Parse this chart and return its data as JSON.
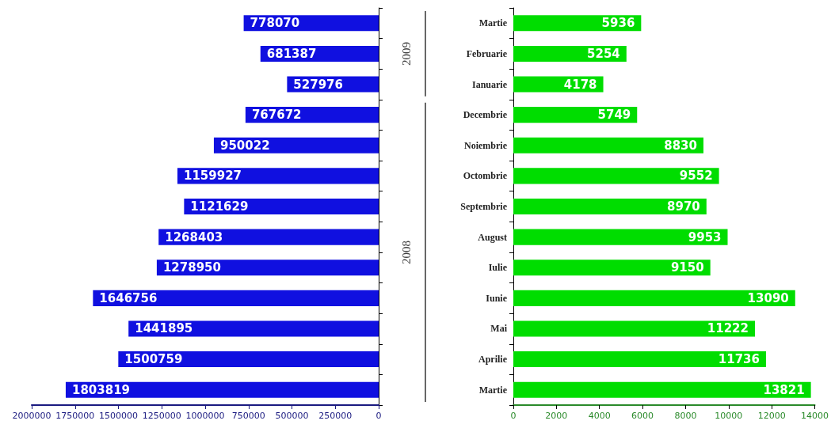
{
  "chart_data": [
    {
      "type": "bar",
      "orientation": "horizontal",
      "categories": [
        null,
        null,
        null,
        null,
        null,
        null,
        null,
        null,
        null,
        null,
        null,
        null,
        null
      ],
      "values": [
        778070,
        681387,
        527976,
        767672,
        950022,
        1159927,
        1121629,
        1268403,
        1278950,
        1646756,
        1441895,
        1500759,
        1803819
      ],
      "color": "#1010e0",
      "xlim": [
        2000000,
        0
      ],
      "xticks": [
        2000000,
        1750000,
        1500000,
        1250000,
        1000000,
        750000,
        500000,
        250000,
        0
      ],
      "data_labels": true,
      "grid": false
    },
    {
      "type": "bar",
      "orientation": "horizontal",
      "categories": [
        "Martie",
        "Februarie",
        "Ianuarie",
        "Decembrie",
        "Noiembrie",
        "Octombrie",
        "Septembrie",
        "August",
        "Iulie",
        "Iunie",
        "Mai",
        "Aprilie",
        "Martie"
      ],
      "values": [
        5936,
        5254,
        4178,
        5749,
        8830,
        9552,
        8970,
        9953,
        9150,
        13090,
        11222,
        11736,
        13821
      ],
      "color": "#00dd00",
      "xlim": [
        0,
        14000
      ],
      "xticks": [
        0,
        2000,
        4000,
        6000,
        8000,
        10000,
        12000,
        14000
      ],
      "data_labels": true,
      "grid": false,
      "annotations": [
        "2009",
        "2008"
      ]
    }
  ]
}
